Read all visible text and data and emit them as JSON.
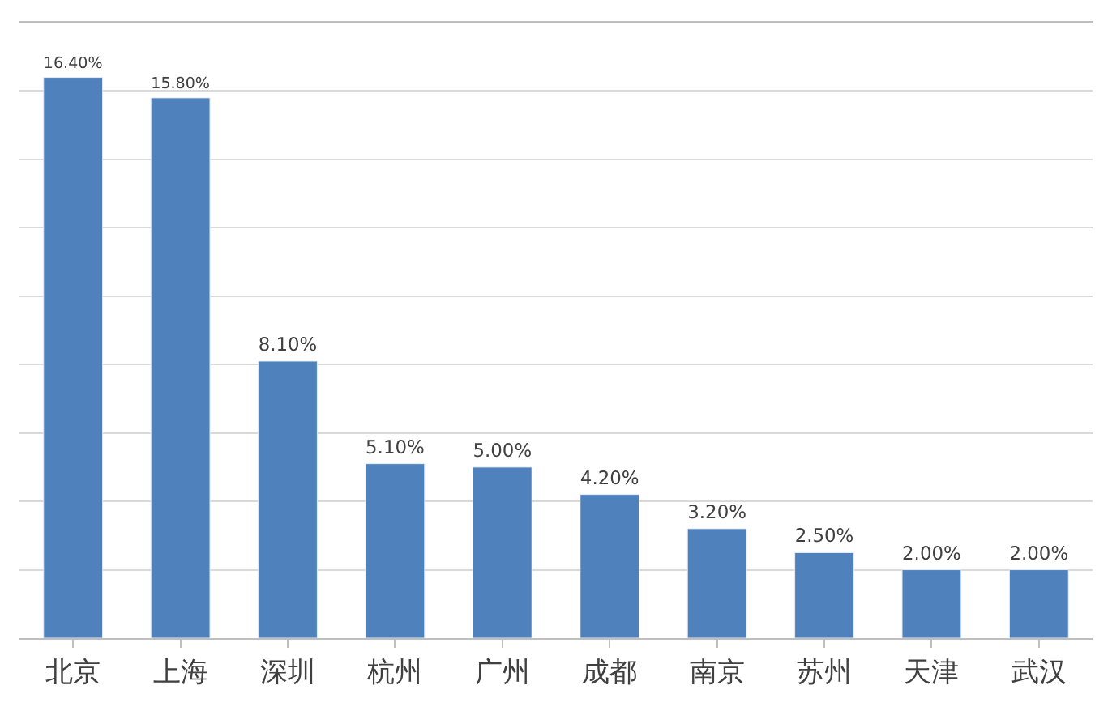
{
  "chart_data": {
    "type": "bar",
    "categories": [
      "北京",
      "上海",
      "深圳",
      "杭州",
      "广州",
      "成都",
      "南京",
      "苏州",
      "天津",
      "武汉"
    ],
    "values": [
      16.4,
      15.8,
      8.1,
      5.1,
      5.0,
      4.2,
      3.2,
      2.5,
      2.0,
      2.0
    ],
    "value_labels": [
      "16.40%",
      "15.80%",
      "8.10%",
      "5.10%",
      "5.00%",
      "4.20%",
      "3.20%",
      "2.50%",
      "2.00%",
      "2.00%"
    ],
    "color": "#4f81bd",
    "ylim": [
      0,
      18
    ],
    "yticks": [
      {
        "value": 0,
        "label": null
      },
      {
        "value": 2,
        "label": null
      },
      {
        "value": 4,
        "label": null
      },
      {
        "value": 6,
        "label": null
      },
      {
        "value": 8,
        "label": null
      },
      {
        "value": 10,
        "label": null
      },
      {
        "value": 12,
        "label": null
      },
      {
        "value": 14,
        "label": null
      },
      {
        "value": 16,
        "label": null
      },
      {
        "value": 18,
        "label": null
      }
    ],
    "grid": "y",
    "tick_labels": "x",
    "legend": false
  }
}
